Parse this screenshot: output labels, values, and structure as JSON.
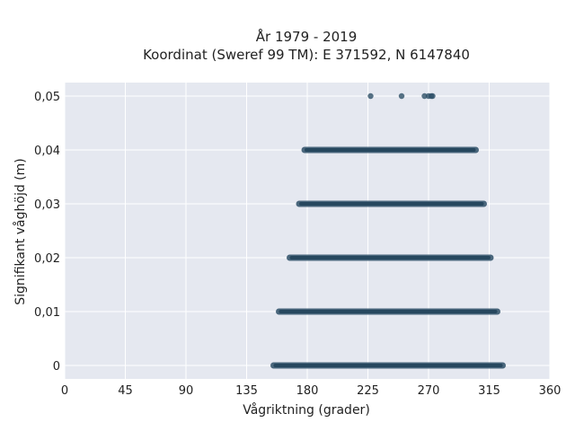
{
  "chart_data": {
    "type": "scatter",
    "title_lines": [
      "År 1979 - 2019",
      "Koordinat (Sweref 99 TM): E 371592, N 6147840"
    ],
    "xlabel": "Vågriktning (grader)",
    "ylabel": "Signifikant våghöjd (m)",
    "xlim": [
      0,
      360
    ],
    "ylim": [
      -0.0025,
      0.0525
    ],
    "x_ticks": [
      0,
      45,
      90,
      135,
      180,
      225,
      270,
      315,
      360
    ],
    "x_tick_labels": [
      "0",
      "45",
      "90",
      "135",
      "180",
      "225",
      "270",
      "315",
      "360"
    ],
    "y_ticks": [
      0,
      0.01,
      0.02,
      0.03,
      0.04,
      0.05
    ],
    "y_tick_labels": [
      "0",
      "0,01",
      "0,02",
      "0,03",
      "0,04",
      "0,05"
    ],
    "grid": true,
    "series": [
      {
        "color": "#2e5068",
        "bands": [
          {
            "y": 0,
            "x_min": 155,
            "x_max": 325
          },
          {
            "y": 0.01,
            "x_min": 159,
            "x_max": 321
          },
          {
            "y": 0.02,
            "x_min": 167,
            "x_max": 316
          },
          {
            "y": 0.03,
            "x_min": 174,
            "x_max": 311
          },
          {
            "y": 0.04,
            "x_min": 178,
            "x_max": 305
          }
        ],
        "points": [
          {
            "x": 227,
            "y": 0.05
          },
          {
            "x": 250,
            "y": 0.05
          },
          {
            "x": 267,
            "y": 0.05
          },
          {
            "x": 270,
            "y": 0.05
          },
          {
            "x": 272,
            "y": 0.05
          },
          {
            "x": 273,
            "y": 0.05
          }
        ]
      }
    ]
  }
}
